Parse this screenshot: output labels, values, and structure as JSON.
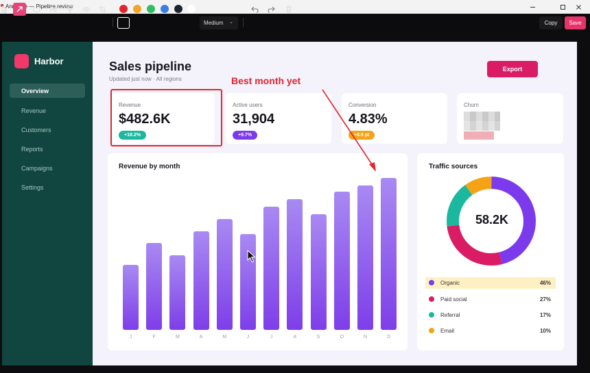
{
  "window": {
    "title": "Annotate — Pipeline review"
  },
  "toolbar": {
    "size_select": "Medium",
    "copy_label": "Copy",
    "save_label": "Save",
    "colors": [
      "#e1252e",
      "#f0a526",
      "#2fbf63",
      "#3b7fe6",
      "#1e2330",
      "#ffffff"
    ],
    "selected_color": "#e1252e"
  },
  "sidebar": {
    "brand": "Harbor",
    "items": [
      {
        "label": "Overview",
        "active": true
      },
      {
        "label": "Revenue"
      },
      {
        "label": "Customers"
      },
      {
        "label": "Reports"
      },
      {
        "label": "Campaigns"
      },
      {
        "label": "Settings"
      }
    ]
  },
  "header": {
    "title": "Sales pipeline",
    "subtitle": "Updated just now · All regions",
    "export_label": "Export"
  },
  "kpis": [
    {
      "label": "Revenue",
      "value": "$482.6K",
      "delta": "+18.2%",
      "color": "#1bb8a0"
    },
    {
      "label": "Active users",
      "value": "31,904",
      "delta": "+9.7%",
      "color": "#7c3aed"
    },
    {
      "label": "Conversion",
      "value": "4.83%",
      "delta": "+0.6 pt",
      "color": "#f5a316"
    },
    {
      "label": "Churn",
      "value": "",
      "delta": ""
    }
  ],
  "revenue_chart": {
    "title": "Revenue by month"
  },
  "chart_data": {
    "type": "bar",
    "categories": [
      "J",
      "F",
      "M",
      "A",
      "M",
      "J",
      "J",
      "A",
      "S",
      "O",
      "N",
      "D"
    ],
    "values": [
      43,
      57,
      49,
      65,
      73,
      63,
      81,
      86,
      76,
      91,
      95,
      100
    ],
    "ylim": [
      0,
      100
    ],
    "grid": false
  },
  "traffic": {
    "title": "Traffic sources",
    "total": "58.2K",
    "sources": [
      {
        "name": "Organic",
        "pct": "46%",
        "value": 46,
        "color": "#7c3aed",
        "highlight": true
      },
      {
        "name": "Paid social",
        "pct": "27%",
        "value": 27,
        "color": "#d91c64"
      },
      {
        "name": "Referral",
        "pct": "17%",
        "value": 17,
        "color": "#1bb8a0"
      },
      {
        "name": "Email",
        "pct": "10%",
        "value": 10,
        "color": "#f5a316"
      }
    ]
  },
  "annotation": {
    "text": "Best month yet",
    "color": "#e1252e"
  }
}
